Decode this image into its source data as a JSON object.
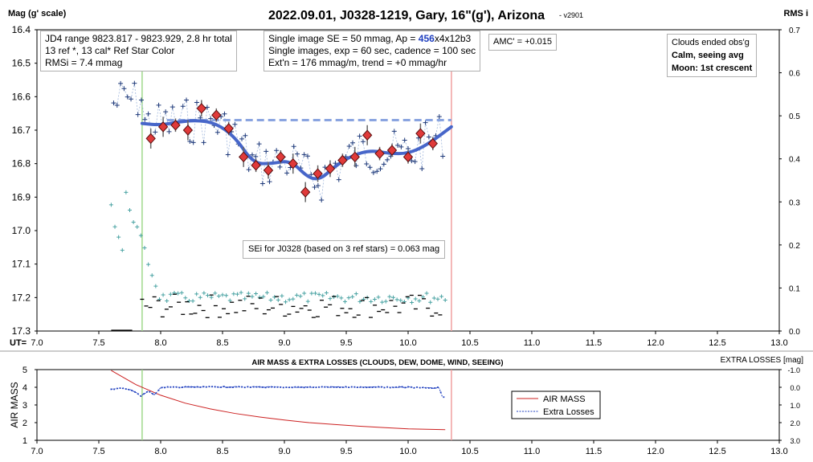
{
  "page": {
    "title": "2022.09.01, J0328-1219, Gary, 16\"(g'), Arizona",
    "version": "- v2901",
    "left_axis_label": "Mag (g' scale)",
    "right_axis_label": "RMS i",
    "ut_label": "UT="
  },
  "info_boxes": {
    "box1": [
      "JD4 range 9823.817 - 9823.929, 2.8 hr total",
      "13 ref *, 13 cal*  Ref Star Color",
      "RMSi = 7.4 mmag"
    ],
    "box2_line1_pre": "Single image SE = 50 mmag, Ap = ",
    "box2_line1_ap": "456",
    "box2_line1_post": "x4x12b3",
    "box2_line2": "Single images, exp = 60 sec, cadence = 100 sec",
    "box2_line3": "Ext'n = 176 mmag/m, trend = +0 mmag/hr",
    "amc": "AMC' = +0.015",
    "box4": [
      "Clouds ended obs'g",
      "Calm, seeing avg",
      "Moon: 1st crescent"
    ],
    "sei": "SEi for J0328 (based on 3 ref stars) = 0.063 mag"
  },
  "chart_data": [
    {
      "type": "scatter",
      "title": "2022.09.01, J0328-1219, Gary, 16\"(g'), Arizona",
      "xlabel": "UT=",
      "ylabel": "Mag (g' scale)",
      "y2label": "RMS i",
      "xlim": [
        7.0,
        13.0
      ],
      "ylim": [
        17.3,
        16.4
      ],
      "y2lim": [
        0.0,
        0.7
      ],
      "xticks": [
        "7.0",
        "7.5",
        "8.0",
        "8.5",
        "9.0",
        "9.5",
        "10.0",
        "10.5",
        "11.0",
        "11.5",
        "12.0",
        "12.5",
        "13.0"
      ],
      "yticks": [
        "16.4",
        "16.5",
        "16.6",
        "16.7",
        "16.8",
        "16.9",
        "17.0",
        "17.1",
        "17.2",
        "17.3"
      ],
      "y2ticks": [
        "0.7",
        "0.6",
        "0.5",
        "0.4",
        "0.3",
        "0.2",
        "0.1",
        "0.0"
      ],
      "markers": {
        "green_line_x": 7.85,
        "red_line_x": 10.35
      },
      "dashed_level": {
        "x": [
          8.05,
          10.35
        ],
        "y": 16.67
      },
      "binned": {
        "x": [
          7.92,
          8.02,
          8.12,
          8.22,
          8.33,
          8.45,
          8.55,
          8.67,
          8.77,
          8.87,
          8.97,
          9.07,
          9.17,
          9.27,
          9.37,
          9.47,
          9.57,
          9.67,
          9.77,
          9.87,
          10.0,
          10.1,
          10.2
        ],
        "y": [
          16.725,
          16.69,
          16.685,
          16.7,
          16.635,
          16.655,
          16.695,
          16.78,
          16.805,
          16.82,
          16.78,
          16.8,
          16.885,
          16.83,
          16.815,
          16.79,
          16.78,
          16.715,
          16.77,
          16.76,
          16.78,
          16.71,
          16.74
        ],
        "err": [
          0.03,
          0.03,
          0.02,
          0.03,
          0.025,
          0.02,
          0.02,
          0.03,
          0.02,
          0.025,
          0.02,
          0.03,
          0.03,
          0.025,
          0.025,
          0.02,
          0.03,
          0.03,
          0.02,
          0.02,
          0.02,
          0.03,
          0.02
        ]
      },
      "trend": {
        "x": [
          7.85,
          8.0,
          8.15,
          8.3,
          8.45,
          8.6,
          8.75,
          8.9,
          9.05,
          9.2,
          9.3,
          9.4,
          9.55,
          9.7,
          9.85,
          10.0,
          10.15,
          10.35
        ],
        "y": [
          16.68,
          16.685,
          16.675,
          16.67,
          16.68,
          16.72,
          16.8,
          16.8,
          16.79,
          16.845,
          16.845,
          16.81,
          16.775,
          16.76,
          16.77,
          16.77,
          16.745,
          16.69
        ]
      },
      "unbinned_y_range": [
        16.56,
        16.93
      ],
      "cal_star_y_range": [
        16.86,
        17.2
      ],
      "rms_i_y2_range": [
        0.03,
        0.11
      ]
    },
    {
      "type": "line",
      "title": "AIR MASS & EXTRA LOSSES (CLOUDS, DEW, DOME, WIND, SEEING)",
      "xlabel": "",
      "ylabel": "AIR MASS",
      "y2label": "EXTRA LOSSES [mag]",
      "xlim": [
        7.0,
        13.0
      ],
      "ylim": [
        1,
        5
      ],
      "y2lim": [
        -1.0,
        3.0
      ],
      "xticks": [
        "7.0",
        "7.5",
        "8.0",
        "8.5",
        "9.0",
        "9.5",
        "10.0",
        "10.5",
        "11.0",
        "11.5",
        "12.0",
        "12.5",
        "13.0"
      ],
      "yticks": [
        "5",
        "4",
        "3",
        "2",
        "1"
      ],
      "y2ticks": [
        "-1.0",
        "0.0",
        "1.0",
        "2.0",
        "3.0"
      ],
      "series": [
        {
          "name": "AIR MASS",
          "x": [
            7.6,
            7.8,
            8.0,
            8.2,
            8.4,
            8.6,
            8.8,
            9.0,
            9.2,
            9.4,
            9.6,
            9.8,
            10.0,
            10.3
          ],
          "values": [
            4.95,
            4.15,
            3.55,
            3.1,
            2.78,
            2.52,
            2.32,
            2.15,
            2.0,
            1.9,
            1.8,
            1.72,
            1.65,
            1.6
          ]
        },
        {
          "name": "Extra Losses",
          "x": [
            7.6,
            7.7,
            7.78,
            7.84,
            7.9,
            7.95,
            8.0,
            8.5,
            9.0,
            9.5,
            10.0,
            10.2,
            10.25,
            10.28,
            10.3
          ],
          "values": [
            0.1,
            0.05,
            0.2,
            0.5,
            0.2,
            0.45,
            0.0,
            -0.02,
            0.0,
            -0.01,
            0.0,
            0.05,
            0.0,
            0.6,
            0.55
          ]
        }
      ],
      "legend": "right"
    }
  ]
}
